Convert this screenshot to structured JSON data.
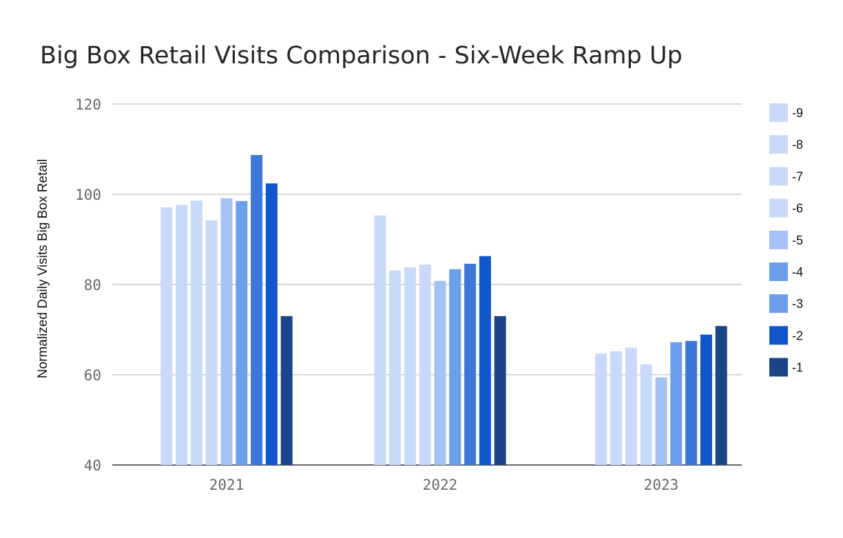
{
  "chart_data": {
    "type": "bar",
    "title": "Big Box Retail Visits Comparison - Six-Week Ramp Up",
    "xlabel": "",
    "ylabel": "Normalized Daily Visits Big Box Retail",
    "ylim": [
      40,
      120
    ],
    "yticks": [
      "40",
      "60",
      "80",
      "100",
      "120"
    ],
    "grid": true,
    "legend_position": "right",
    "categories": [
      "2021",
      "2022",
      "2023"
    ],
    "series": [
      {
        "name": "-9",
        "color": "#c9daf8",
        "legend_color": "#c9daf8",
        "values": [
          97.1,
          95.3,
          64.7
        ]
      },
      {
        "name": "-8",
        "color": "#c9daf8",
        "legend_color": "#c9daf8",
        "values": [
          97.6,
          83.1,
          65.2
        ]
      },
      {
        "name": "-7",
        "color": "#c9daf8",
        "legend_color": "#c9daf8",
        "values": [
          98.6,
          83.8,
          66.0
        ]
      },
      {
        "name": "-6",
        "color": "#c9daf8",
        "legend_color": "#c9daf8",
        "values": [
          94.2,
          84.4,
          62.3
        ]
      },
      {
        "name": "-5",
        "color": "#a4c2f4",
        "legend_color": "#a4c2f4",
        "values": [
          99.1,
          80.8,
          59.4
        ]
      },
      {
        "name": "-4",
        "color": "#6d9eeb",
        "legend_color": "#6d9eeb",
        "values": [
          98.5,
          83.4,
          67.2
        ]
      },
      {
        "name": "-3",
        "color": "#3c78d8",
        "legend_color": "#6d9eeb",
        "values": [
          108.7,
          84.6,
          67.5
        ]
      },
      {
        "name": "-2",
        "color": "#1155cc",
        "legend_color": "#1155cc",
        "values": [
          102.4,
          86.3,
          68.9
        ]
      },
      {
        "name": "-1",
        "color": "#1c4587",
        "legend_color": "#1c4587",
        "values": [
          73.0,
          73.0,
          70.8
        ]
      }
    ]
  }
}
